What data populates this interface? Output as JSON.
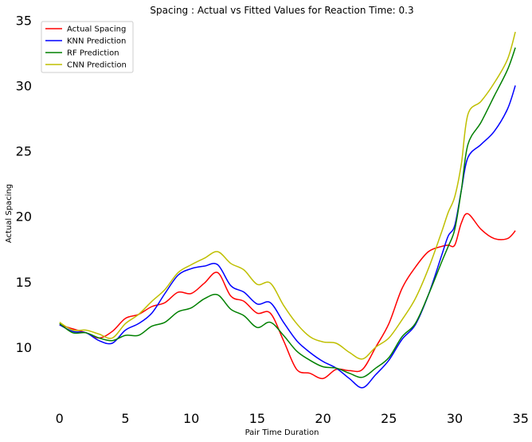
{
  "chart_data": {
    "type": "line",
    "title": "Spacing : Actual vs Fitted Values for Reaction Time: 0.3",
    "xlabel": "Pair Time Duration",
    "ylabel": "Actual Spacing",
    "xlim": [
      -1.8,
      35.5
    ],
    "ylim": [
      5.0,
      35.2
    ],
    "xticks": [
      0,
      5,
      10,
      15,
      20,
      25,
      30,
      35
    ],
    "yticks": [
      10,
      15,
      20,
      25,
      30,
      35
    ],
    "grid": false,
    "legend_position": "upper-left",
    "x": [
      0,
      1,
      2,
      3,
      4,
      5,
      6,
      7,
      8,
      9,
      10,
      11,
      12,
      13,
      14,
      15,
      16,
      17,
      18,
      19,
      20,
      21,
      22,
      23,
      24,
      25,
      26,
      27,
      28,
      29,
      29.5,
      30,
      30.5,
      31,
      32,
      33,
      34,
      34.6
    ],
    "series": [
      {
        "name": "Actual Spacing",
        "color": "#ff0000",
        "values": [
          11.7,
          11.4,
          11.1,
          10.7,
          11.2,
          12.2,
          12.5,
          13.1,
          13.4,
          14.2,
          14.1,
          14.9,
          15.7,
          13.9,
          13.5,
          12.6,
          12.6,
          10.5,
          8.3,
          8.0,
          7.6,
          8.3,
          8.2,
          8.3,
          10.0,
          11.8,
          14.5,
          16.1,
          17.3,
          17.7,
          17.8,
          17.8,
          19.5,
          20.2,
          19.0,
          18.3,
          18.3,
          18.9
        ]
      },
      {
        "name": "KNN  Prediction",
        "color": "#0000ff",
        "values": [
          11.7,
          11.2,
          11.1,
          10.5,
          10.3,
          11.3,
          11.8,
          12.6,
          14.1,
          15.5,
          16.0,
          16.2,
          16.3,
          14.7,
          14.2,
          13.3,
          13.4,
          11.9,
          10.5,
          9.6,
          8.9,
          8.4,
          7.6,
          6.9,
          7.9,
          9.0,
          10.6,
          11.7,
          14.0,
          17.0,
          18.5,
          19.3,
          22.0,
          24.5,
          25.5,
          26.5,
          28.2,
          30.0
        ]
      },
      {
        "name": "RF  Prediction",
        "color": "#008000",
        "values": [
          11.8,
          11.1,
          11.1,
          10.7,
          10.5,
          10.9,
          10.9,
          11.6,
          11.9,
          12.7,
          13.0,
          13.7,
          14.0,
          12.9,
          12.4,
          11.5,
          11.9,
          10.9,
          9.7,
          9.0,
          8.5,
          8.4,
          8.0,
          7.7,
          8.4,
          9.2,
          10.8,
          11.8,
          14.0,
          16.5,
          17.7,
          19.0,
          22.0,
          25.5,
          27.2,
          29.2,
          31.2,
          32.9
        ]
      },
      {
        "name": "CNN  Prediction",
        "color": "#bfbf00",
        "values": [
          11.9,
          11.3,
          11.3,
          11.0,
          10.7,
          11.8,
          12.5,
          13.5,
          14.4,
          15.7,
          16.3,
          16.8,
          17.3,
          16.4,
          15.9,
          14.8,
          14.9,
          13.2,
          11.8,
          10.8,
          10.4,
          10.3,
          9.6,
          9.1,
          10.0,
          10.7,
          12.1,
          13.7,
          16.0,
          18.8,
          20.3,
          21.5,
          24.0,
          27.8,
          28.8,
          30.2,
          32.0,
          34.1
        ]
      }
    ]
  }
}
